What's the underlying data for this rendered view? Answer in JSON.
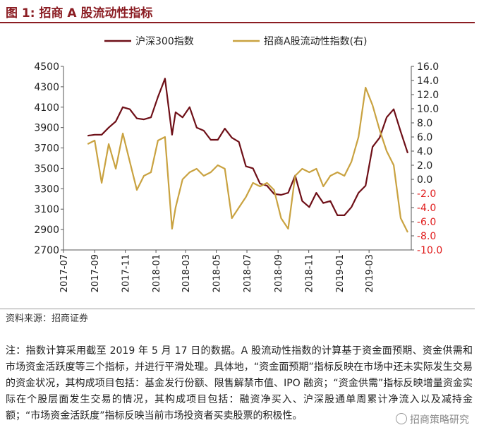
{
  "title": "图 1:  招商 A 股流动性指标",
  "source": "资料来源：招商证券",
  "note": "注：指数计算采用截至 2019 年 5 月 17 日的数据。A 股流动性指数的计算基于资金面预期、资金供需和市场资金活跃度等三个指标，并进行平滑处理。具体地，“资金面预期”指标反映在市场中还未实际发生交易的资金状况，其构成项目包括：基金发行份额、限售解禁市值、IPO 融资；“资金供需”指标反映增量资金实际在个股层面发生交易的情况，其构成项目包括：融资净买入、沪深股通单周累计净流入以及减持金额；“市场资金活跃度”指标反映当前市场投资者买卖股票的积极性。",
  "watermark": "招商策略研究",
  "colors": {
    "hs300": "#6e0f17",
    "liquidity": "#c9a240",
    "negative_tick": "#e01b1b",
    "title": "#8b1d23"
  },
  "chart_data": {
    "type": "line",
    "x_ticks": [
      "2017-07",
      "2017-09",
      "2017-11",
      "2018-01",
      "2018-03",
      "2018-05",
      "2018-07",
      "2018-09",
      "2018-11",
      "2019-01",
      "2019-03"
    ],
    "x_range": [
      "2017-07-01",
      "2019-05-24"
    ],
    "y_left": {
      "ticks": [
        2700,
        2900,
        3100,
        3300,
        3500,
        3700,
        3900,
        4100,
        4300,
        4500
      ],
      "range": [
        2700,
        4500
      ]
    },
    "y_right": {
      "ticks": [
        "16.0",
        "14.0",
        "12.0",
        "10.0",
        "8.0",
        "6.0",
        "4.0",
        "2.0",
        "0.0",
        "-2.0",
        "-4.0",
        "-6.0",
        "-8.0",
        "-10.0"
      ],
      "range": [
        -10,
        16
      ]
    },
    "legend_position": "top",
    "grid": false,
    "series": [
      {
        "name": "沪深300指数",
        "axis": "left",
        "x": [
          "2017-08-18",
          "2017-09-01",
          "2017-09-15",
          "2017-09-29",
          "2017-10-13",
          "2017-10-27",
          "2017-11-10",
          "2017-11-24",
          "2017-12-08",
          "2017-12-22",
          "2018-01-05",
          "2018-01-19",
          "2018-02-02",
          "2018-02-09",
          "2018-02-23",
          "2018-03-09",
          "2018-03-23",
          "2018-04-06",
          "2018-04-20",
          "2018-05-04",
          "2018-05-18",
          "2018-06-01",
          "2018-06-15",
          "2018-06-29",
          "2018-07-13",
          "2018-07-27",
          "2018-08-10",
          "2018-08-24",
          "2018-09-07",
          "2018-09-21",
          "2018-10-05",
          "2018-10-19",
          "2018-11-02",
          "2018-11-16",
          "2018-11-30",
          "2018-12-14",
          "2018-12-28",
          "2019-01-11",
          "2019-01-25",
          "2019-02-08",
          "2019-02-22",
          "2019-03-08",
          "2019-03-22",
          "2019-04-05",
          "2019-04-19",
          "2019-05-03",
          "2019-05-17"
        ],
        "values": [
          3820,
          3830,
          3830,
          3900,
          3960,
          4100,
          4080,
          3990,
          3980,
          4000,
          4200,
          4380,
          3830,
          4050,
          4000,
          4100,
          3900,
          3870,
          3780,
          3780,
          3890,
          3800,
          3760,
          3520,
          3500,
          3350,
          3330,
          3250,
          3240,
          3260,
          3430,
          3180,
          3120,
          3260,
          3160,
          3180,
          3040,
          3040,
          3120,
          3260,
          3330,
          3710,
          3800,
          4000,
          4080,
          3860,
          3650
        ],
        "label_precision": 0
      },
      {
        "name": "招商A股流动性指数(右)",
        "axis": "right",
        "x": [
          "2017-08-18",
          "2017-09-01",
          "2017-09-15",
          "2017-09-29",
          "2017-10-13",
          "2017-10-27",
          "2017-11-10",
          "2017-11-24",
          "2017-12-08",
          "2017-12-22",
          "2018-01-05",
          "2018-01-19",
          "2018-02-02",
          "2018-02-09",
          "2018-02-23",
          "2018-03-09",
          "2018-03-23",
          "2018-04-06",
          "2018-04-20",
          "2018-05-04",
          "2018-05-18",
          "2018-06-01",
          "2018-06-15",
          "2018-06-29",
          "2018-07-13",
          "2018-07-27",
          "2018-08-10",
          "2018-08-24",
          "2018-09-07",
          "2018-09-21",
          "2018-10-05",
          "2018-10-19",
          "2018-11-02",
          "2018-11-16",
          "2018-11-30",
          "2018-12-14",
          "2018-12-28",
          "2019-01-11",
          "2019-01-25",
          "2019-02-08",
          "2019-02-22",
          "2019-03-08",
          "2019-03-22",
          "2019-04-05",
          "2019-04-19",
          "2019-05-03",
          "2019-05-17"
        ],
        "values": [
          5.0,
          5.5,
          -0.5,
          5.0,
          1.5,
          6.5,
          2.5,
          -1.5,
          0.5,
          1.0,
          5.5,
          6.0,
          -7.0,
          -4.0,
          0.0,
          1.0,
          1.5,
          0.5,
          1.0,
          2.0,
          1.5,
          -5.5,
          -4.0,
          -2.5,
          -0.5,
          -1.0,
          -0.5,
          -1.5,
          -5.5,
          -7.0,
          0.5,
          1.5,
          1.0,
          1.5,
          -1.0,
          0.5,
          1.0,
          0.5,
          2.5,
          6.0,
          13.0,
          10.5,
          7.0,
          4.0,
          2.0,
          -5.5,
          -7.5
        ]
      }
    ]
  }
}
